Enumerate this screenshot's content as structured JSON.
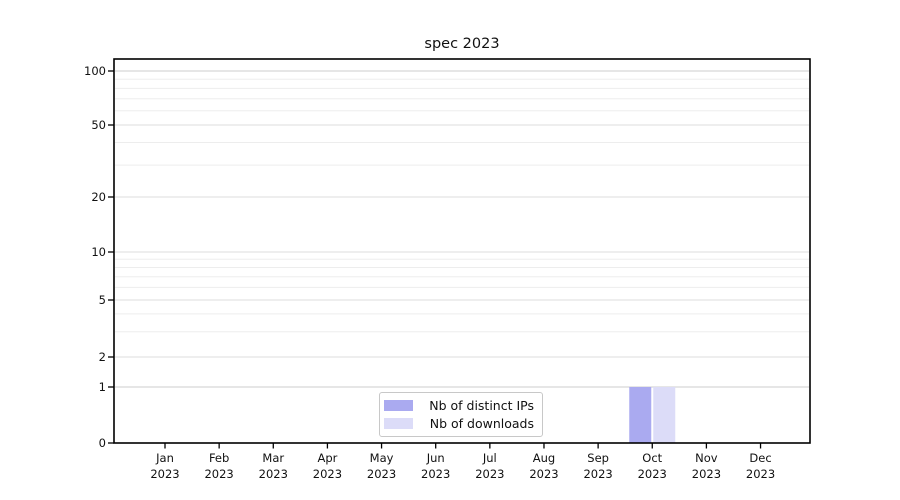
{
  "chart_data": {
    "type": "bar",
    "title": "spec 2023",
    "categories": [
      "Jan 2023",
      "Feb 2023",
      "Mar 2023",
      "Apr 2023",
      "May 2023",
      "Jun 2023",
      "Jul 2023",
      "Aug 2023",
      "Sep 2023",
      "Oct 2023",
      "Nov 2023",
      "Dec 2023"
    ],
    "series": [
      {
        "name": "Nb of distinct IPs",
        "color": "#aaaaf0",
        "values": [
          0,
          0,
          0,
          0,
          0,
          0,
          0,
          0,
          0,
          1,
          0,
          0
        ]
      },
      {
        "name": "Nb of downloads",
        "color": "#dcdcf8",
        "values": [
          0,
          0,
          0,
          0,
          0,
          0,
          0,
          0,
          0,
          1,
          0,
          0
        ]
      }
    ],
    "xlabel": "",
    "ylabel": "",
    "y_axis": {
      "scale": "symlog",
      "range": [
        0,
        100
      ],
      "major_ticks": [
        0,
        1,
        2,
        5,
        10,
        20,
        50,
        100
      ],
      "minor_gridlines": [
        3,
        4,
        6,
        7,
        8,
        9,
        30,
        40,
        60,
        70,
        80,
        90
      ]
    },
    "grid": "horizontal",
    "legend": {
      "position": "inside-bottom-center",
      "entries": [
        "Nb of distinct IPs",
        "Nb of downloads"
      ]
    }
  }
}
